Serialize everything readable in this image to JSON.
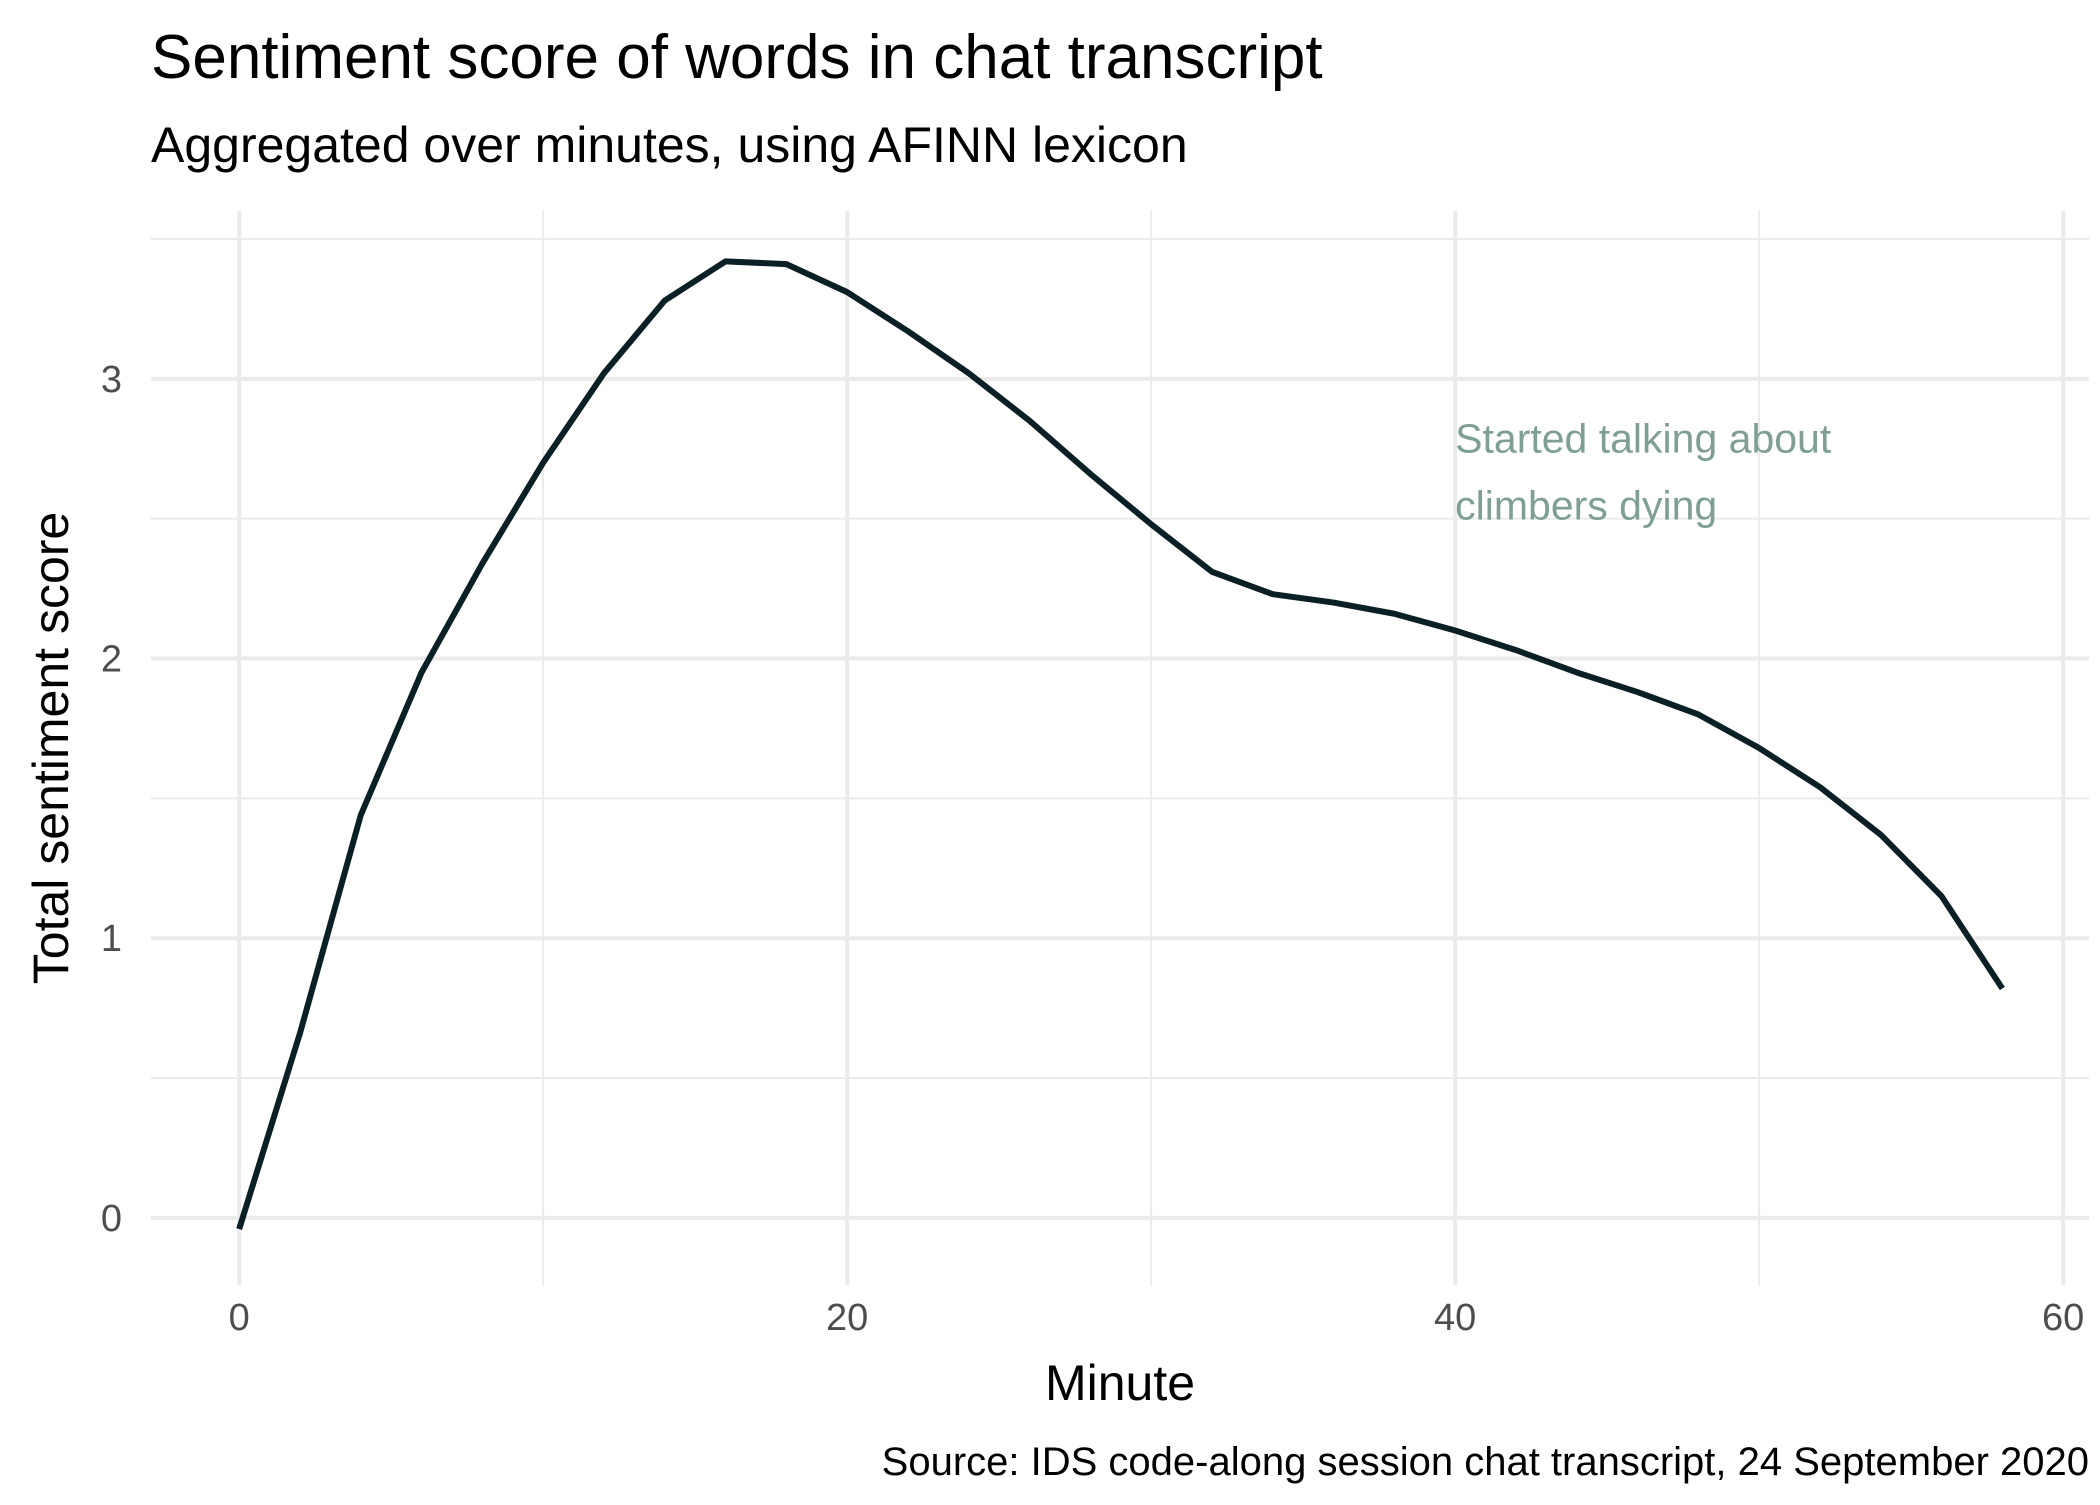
{
  "chart_data": {
    "type": "line",
    "title": "Sentiment score of words in chat transcript",
    "subtitle": "Aggregated over minutes, using AFINN lexicon",
    "x_label": "Minute",
    "y_label": "Total sentiment score",
    "caption": "Source: IDS code-along session chat transcript, 24 September 2020",
    "annotation": {
      "lines": [
        "Started talking about",
        "climbers dying"
      ],
      "x": 40,
      "y": 2.55,
      "color": "#7f9f94"
    },
    "x": [
      0,
      2,
      4,
      6,
      8,
      10,
      12,
      14,
      16,
      18,
      20,
      22,
      24,
      26,
      28,
      30,
      32,
      34,
      36,
      38,
      40,
      42,
      44,
      46,
      48,
      50,
      52,
      54,
      56,
      58
    ],
    "series": [
      {
        "name": "Total sentiment score",
        "color": "#0b1f26",
        "values": [
          -0.04,
          0.66,
          1.44,
          1.95,
          2.34,
          2.7,
          3.02,
          3.28,
          3.42,
          3.41,
          3.31,
          3.17,
          3.02,
          2.85,
          2.66,
          2.48,
          2.31,
          2.23,
          2.2,
          2.16,
          2.1,
          2.03,
          1.95,
          1.88,
          1.8,
          1.68,
          1.54,
          1.37,
          1.15,
          0.82
        ]
      }
    ],
    "xlim": [
      -2.9,
      60.85
    ],
    "ylim": [
      -0.24,
      3.6
    ],
    "xticks": [
      0,
      20,
      40,
      60
    ],
    "yticks": [
      0,
      1,
      2,
      3
    ],
    "xminor": [
      10,
      30,
      50
    ],
    "yminor": [
      0.5,
      1.5,
      2.5,
      3.5
    ],
    "grid": true
  }
}
